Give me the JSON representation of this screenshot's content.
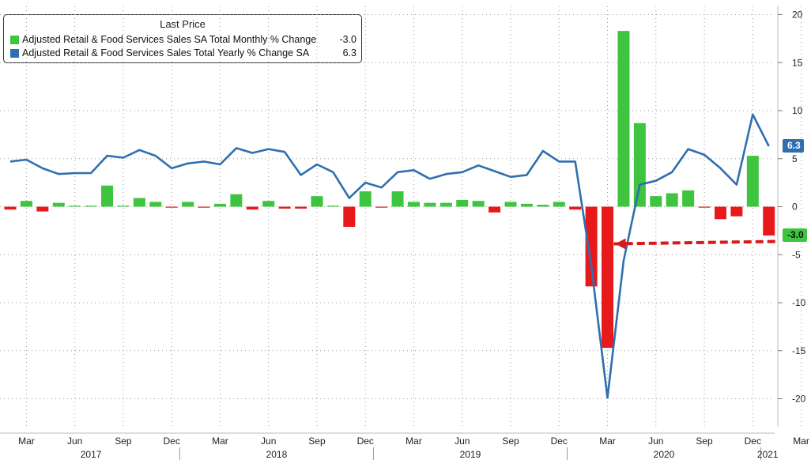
{
  "chart_data": {
    "type": "bar+line",
    "legend_title": "Last Price",
    "series": [
      {
        "name": "Adjusted Retail & Food Services Sales SA Total Monthly % Change",
        "type": "bar",
        "last_value": "-3.0",
        "color_positive": "#3ec43e",
        "color_negative": "#e8191a",
        "values": [
          -0.3,
          0.6,
          -0.5,
          0.4,
          0.1,
          0.1,
          2.2,
          0.1,
          0.9,
          0.5,
          -0.1,
          0.5,
          -0.1,
          0.3,
          1.3,
          -0.3,
          0.6,
          -0.2,
          -0.2,
          1.1,
          0.1,
          -2.1,
          1.6,
          -0.1,
          1.6,
          0.5,
          0.4,
          0.4,
          0.7,
          0.6,
          -0.6,
          0.5,
          0.3,
          0.2,
          0.5,
          -0.3,
          -8.3,
          -14.7,
          18.3,
          8.7,
          1.1,
          1.4,
          1.7,
          -0.1,
          -1.3,
          -1.0,
          5.3,
          -3.0
        ]
      },
      {
        "name": "Adjusted Retail & Food Services Sales Total Yearly % Change SA",
        "type": "line",
        "last_value": "6.3",
        "color": "#2f6fb0",
        "values": [
          4.7,
          4.9,
          4.0,
          3.4,
          3.5,
          3.5,
          5.3,
          5.1,
          5.9,
          5.3,
          4.0,
          4.5,
          4.7,
          4.4,
          6.1,
          5.6,
          6.0,
          5.7,
          3.3,
          4.4,
          3.6,
          0.9,
          2.5,
          2.0,
          3.6,
          3.8,
          2.9,
          3.4,
          3.6,
          4.3,
          3.7,
          3.1,
          3.3,
          5.8,
          4.7,
          4.7,
          -6.2,
          -19.9,
          -5.6,
          2.3,
          2.7,
          3.6,
          6.0,
          5.4,
          4.0,
          2.3,
          9.6,
          6.3
        ]
      }
    ],
    "x_start": "2017-02",
    "x_ticks": [
      "Mar",
      "Jun",
      "Sep",
      "Dec",
      "Mar",
      "Jun",
      "Sep",
      "Dec",
      "Mar",
      "Jun",
      "Sep",
      "Dec",
      "Mar",
      "Jun",
      "Sep",
      "Dec",
      "Mar"
    ],
    "years": [
      "2017",
      "2018",
      "2019",
      "2020",
      "2021"
    ],
    "y_ticks": [
      "20",
      "15",
      "10",
      "5",
      "0",
      "-5",
      "-10",
      "-15",
      "-20"
    ],
    "ylim": [
      -22.5,
      21
    ],
    "grid": true,
    "legend_position": "top-left",
    "annotation": "dashed red arrow pointing from latest monthly value back to April 2020 drop"
  }
}
